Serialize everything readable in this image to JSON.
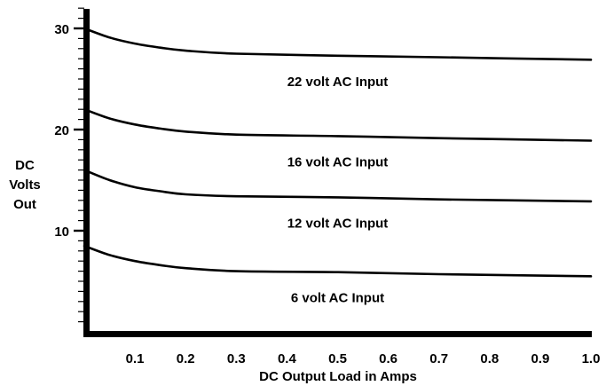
{
  "chart_data": {
    "type": "line",
    "title": "",
    "xlabel": "DC Output Load in Amps",
    "ylabel_lines": [
      "DC",
      "Volts",
      "Out"
    ],
    "xlim": [
      0,
      1.0
    ],
    "ylim": [
      0,
      32
    ],
    "x_ticks": [
      "0.1",
      "0.2",
      "0.3",
      "0.4",
      "0.5",
      "0.6",
      "0.7",
      "0.8",
      "0.9",
      "1.0"
    ],
    "y_ticks": [
      "10",
      "20",
      "30"
    ],
    "grid": false,
    "series": [
      {
        "name": "22 volt AC Input",
        "points": [
          [
            0,
            30
          ],
          [
            0.05,
            29.1
          ],
          [
            0.1,
            28.5
          ],
          [
            0.15,
            28.1
          ],
          [
            0.2,
            27.8
          ],
          [
            0.3,
            27.5
          ],
          [
            0.5,
            27.3
          ],
          [
            0.7,
            27.15
          ],
          [
            1.0,
            26.9
          ]
        ]
      },
      {
        "name": "16 volt AC Input",
        "points": [
          [
            0,
            22
          ],
          [
            0.05,
            21.1
          ],
          [
            0.1,
            20.5
          ],
          [
            0.15,
            20.1
          ],
          [
            0.2,
            19.8
          ],
          [
            0.3,
            19.5
          ],
          [
            0.5,
            19.35
          ],
          [
            0.7,
            19.15
          ],
          [
            1.0,
            18.9
          ]
        ]
      },
      {
        "name": "12 volt AC Input",
        "points": [
          [
            0,
            16
          ],
          [
            0.05,
            15.0
          ],
          [
            0.1,
            14.3
          ],
          [
            0.15,
            13.9
          ],
          [
            0.2,
            13.6
          ],
          [
            0.3,
            13.4
          ],
          [
            0.5,
            13.3
          ],
          [
            0.7,
            13.1
          ],
          [
            1.0,
            12.9
          ]
        ]
      },
      {
        "name": "6 volt AC Input",
        "points": [
          [
            0,
            8.5
          ],
          [
            0.05,
            7.6
          ],
          [
            0.1,
            7.0
          ],
          [
            0.15,
            6.6
          ],
          [
            0.2,
            6.3
          ],
          [
            0.3,
            6.0
          ],
          [
            0.5,
            5.9
          ],
          [
            0.7,
            5.7
          ],
          [
            1.0,
            5.5
          ]
        ]
      }
    ]
  }
}
